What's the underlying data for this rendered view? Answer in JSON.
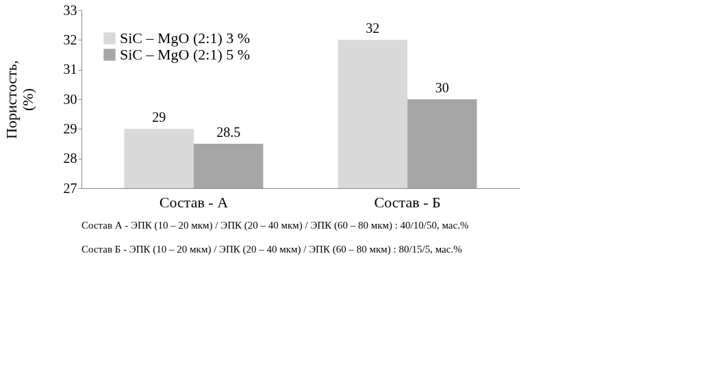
{
  "chart_data": {
    "type": "bar",
    "categories": [
      "Состав - А",
      "Состав - Б"
    ],
    "series": [
      {
        "name": "SiC – MgO (2:1) 3 %",
        "color": "#d9d9d9",
        "values": [
          29,
          32
        ]
      },
      {
        "name": "SiC – MgO (2:1) 5 %",
        "color": "#a6a6a6",
        "values": [
          28.5,
          30
        ]
      }
    ],
    "ylabel": "Пористость,\n(%)",
    "ylim": [
      27,
      33
    ],
    "yticks": [
      27,
      28,
      29,
      30,
      31,
      32,
      33
    ],
    "grid": false,
    "legend": "top left",
    "data_labels": true,
    "annotations": [
      "Состав  А - ЭПК (10 – 20 мкм) / ЭПК (20 – 40 мкм) / ЭПК (60  – 80 мкм) : 40/10/50,  мас.%",
      "Состав  Б - ЭПК (10 – 20 мкм) / ЭПК (20 – 40 мкм) / ЭПК (60  – 80 мкм) : 80/15/5,  мас.%"
    ]
  }
}
